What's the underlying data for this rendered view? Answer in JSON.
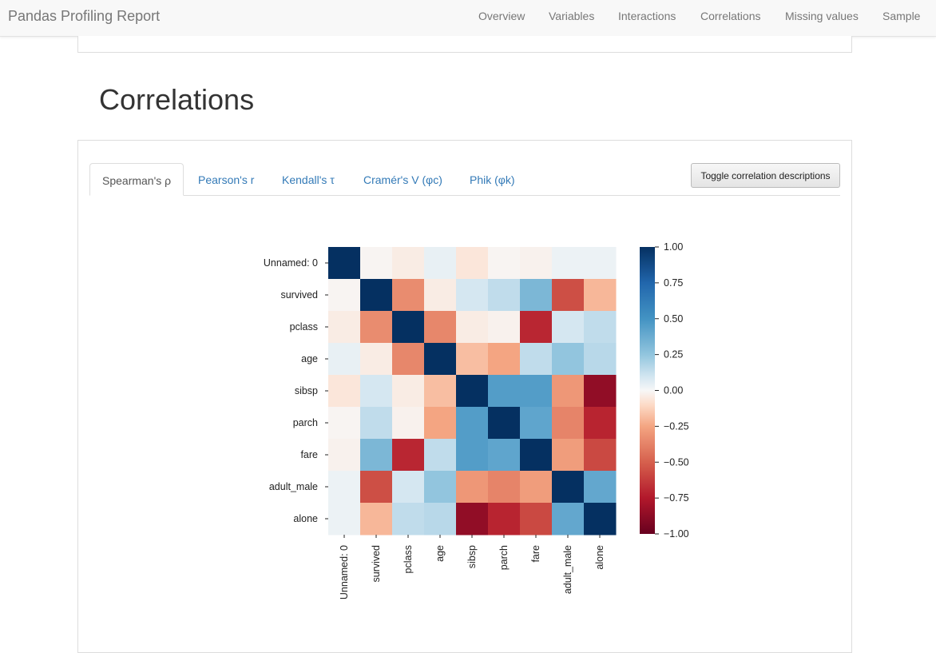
{
  "navbar": {
    "brand": "Pandas Profiling Report",
    "items": [
      "Overview",
      "Variables",
      "Interactions",
      "Correlations",
      "Missing values",
      "Sample"
    ]
  },
  "section": {
    "title": "Correlations"
  },
  "tabs": [
    "Spearman's ρ",
    "Pearson's r",
    "Kendall's τ",
    "Cramér's V (φc)",
    "Phik (φk)"
  ],
  "active_tab": "Spearman's ρ",
  "toggle_button": "Toggle correlation descriptions",
  "chart_data": {
    "type": "heatmap",
    "title": "",
    "labels": [
      "Unnamed: 0",
      "survived",
      "pclass",
      "age",
      "sibsp",
      "parch",
      "fare",
      "adult_male",
      "alone"
    ],
    "matrix": [
      [
        1.0,
        -0.01,
        -0.04,
        0.04,
        -0.06,
        -0.01,
        -0.02,
        0.03,
        0.03
      ],
      [
        -0.01,
        1.0,
        -0.34,
        -0.04,
        0.09,
        0.14,
        0.32,
        -0.56,
        -0.2
      ],
      [
        -0.04,
        -0.34,
        1.0,
        -0.36,
        -0.04,
        -0.02,
        -0.7,
        0.09,
        0.14
      ],
      [
        0.04,
        -0.04,
        -0.36,
        1.0,
        -0.18,
        -0.25,
        0.14,
        0.25,
        0.16
      ],
      [
        -0.06,
        0.09,
        -0.04,
        -0.18,
        1.0,
        0.45,
        0.45,
        -0.3,
        -0.86
      ],
      [
        -0.01,
        0.14,
        -0.02,
        -0.25,
        0.45,
        1.0,
        0.41,
        -0.37,
        -0.71
      ],
      [
        -0.02,
        0.32,
        -0.7,
        0.14,
        0.45,
        0.41,
        1.0,
        -0.28,
        -0.58
      ],
      [
        0.03,
        -0.56,
        0.09,
        0.25,
        -0.3,
        -0.37,
        -0.28,
        1.0,
        0.4
      ],
      [
        0.03,
        -0.2,
        0.14,
        0.16,
        -0.86,
        -0.71,
        -0.58,
        0.4,
        1.0
      ]
    ],
    "colormap": "RdBu",
    "vmin": -1.0,
    "vmax": 1.0,
    "colorbar_ticks": [
      "1.00",
      "0.75",
      "0.50",
      "0.25",
      "0.00",
      "−0.25",
      "−0.50",
      "−0.75",
      "−1.00"
    ]
  }
}
